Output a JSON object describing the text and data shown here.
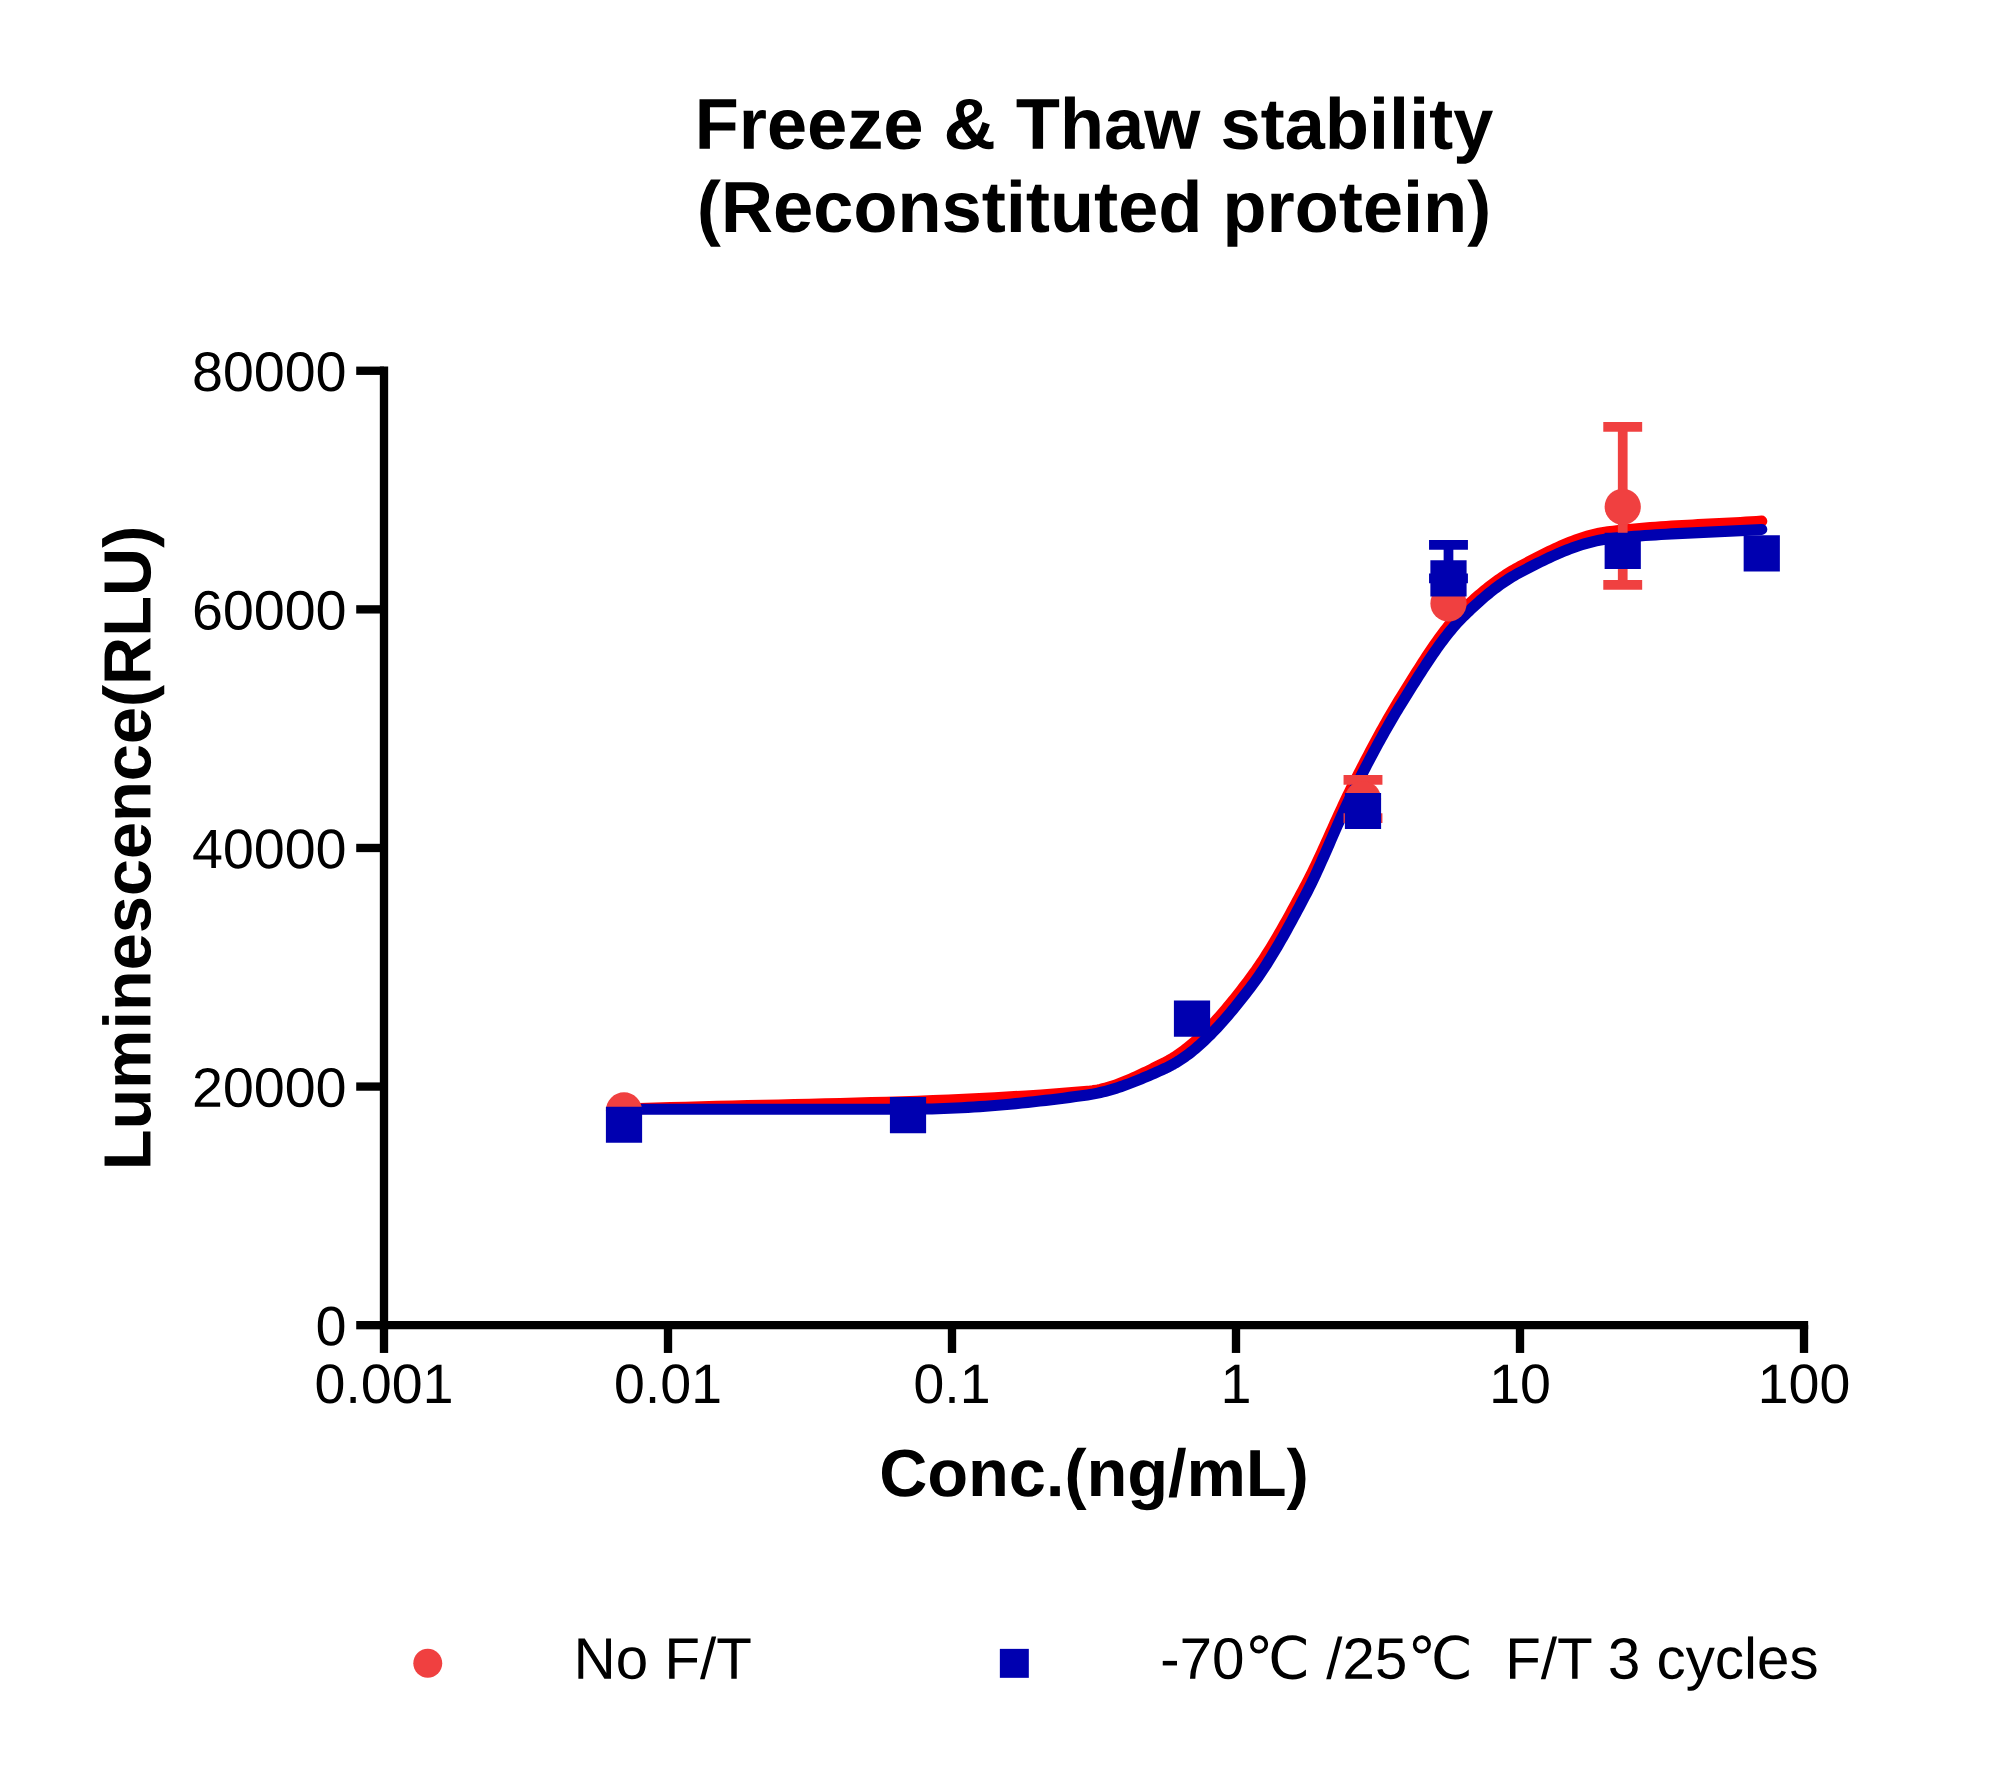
{
  "chart_data": {
    "type": "scatter",
    "title": "Freeze & Thaw stability\n(Reconstituted protein)",
    "xlabel": "Conc.(ng/mL)",
    "ylabel": "Luminescence(RLU)",
    "log": "x",
    "xlim": [
      0.001,
      100
    ],
    "xticks": [
      0.001,
      0.01,
      0.1,
      1,
      10,
      100
    ],
    "ylim": [
      0,
      80000
    ],
    "yticks": [
      0,
      20000,
      40000,
      60000,
      80000
    ],
    "grid": false,
    "legend": "bottom",
    "series": [
      {
        "type": "line",
        "color": "#ff0000",
        "marker": "none",
        "line_style": "solid",
        "x": [
          0.007,
          0.3,
          0.56,
          0.67,
          1.14,
          1.77,
          2.57,
          3.8,
          6.2,
          10,
          20.4,
          71
        ],
        "values": [
          18100,
          19600,
          22000,
          23200,
          29300,
          37000,
          45200,
          52600,
          59800,
          63600,
          66500,
          67400
        ]
      },
      {
        "type": "line",
        "color": "#0000b0",
        "marker": "none",
        "line_style": "solid",
        "x": [
          0.007,
          0.07,
          0.3,
          0.56,
          0.67,
          1.14,
          1.77,
          2.57,
          3.8,
          6.2,
          10,
          20.4,
          71
        ],
        "values": [
          18100,
          18100,
          19300,
          21500,
          22600,
          28500,
          36200,
          44600,
          52000,
          59200,
          63100,
          65900,
          66700
        ]
      },
      {
        "name": "No F/T",
        "color": "#f04040",
        "marker": "circle",
        "x": [
          0.007,
          0.07,
          0.7,
          2.8,
          5.6,
          23
        ],
        "values": [
          18000,
          null,
          null,
          44100,
          60500,
          68600
        ],
        "errors": [
          null,
          null,
          null,
          1600,
          null,
          [
            62050,
            75300
          ]
        ]
      },
      {
        "name": "-70℃ /25℃  F/T 3 cycles",
        "color": "#0000b0",
        "marker": "square",
        "x": [
          0.007,
          0.07,
          0.7,
          2.8,
          5.6,
          23,
          71
        ],
        "values": [
          16800,
          17600,
          25700,
          43100,
          62600,
          64900,
          64700
        ],
        "errors": [
          null,
          null,
          null,
          null,
          [
            62600,
            65400
          ],
          null,
          null
        ]
      }
    ]
  }
}
